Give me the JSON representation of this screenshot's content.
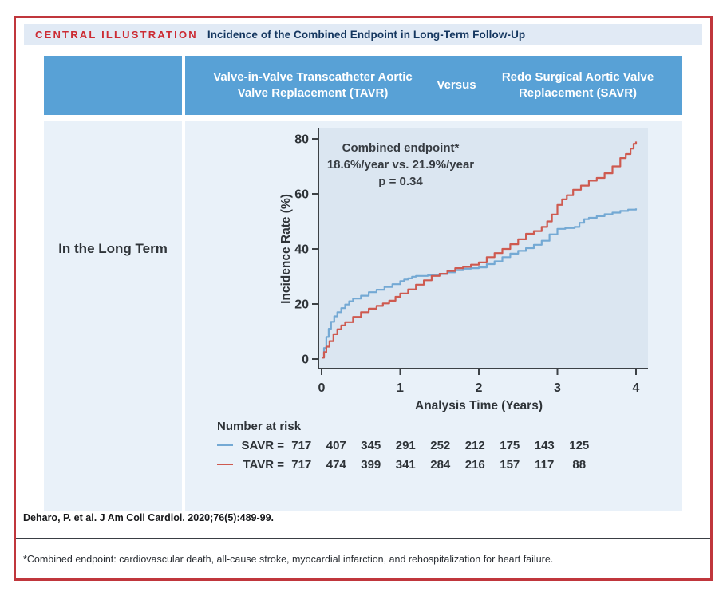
{
  "figure": {
    "kicker": "CENTRAL ILLUSTRATION",
    "title": "Incidence of the Combined Endpoint in Long-Term Follow-Up",
    "citation": "Deharo, P. et al. J Am Coll Cardiol. 2020;76(5):489-99.",
    "footnote": "*Combined endpoint: cardiovascular death, all-cause stroke, myocardial infarction, and rehospitalization for heart failure."
  },
  "comparison_header": {
    "left": "Valve-in-Valve Transcatheter Aortic Valve Replacement (TAVR)",
    "middle": "Versus",
    "right": "Redo Surgical Aortic Valve Replacement (SAVR)"
  },
  "row_label": "In the Long Term",
  "number_at_risk": {
    "title": "Number at risk",
    "rows": [
      {
        "label": "SAVR =",
        "color": "#74a9d4",
        "counts": [
          717,
          407,
          345,
          291,
          252,
          212,
          175,
          143,
          125
        ]
      },
      {
        "label": "TAVR =",
        "color": "#ce5a50",
        "counts": [
          717,
          474,
          399,
          341,
          284,
          216,
          157,
          117,
          88
        ]
      }
    ]
  },
  "chart_data": {
    "type": "line",
    "title": "",
    "xlabel": "Analysis Time (Years)",
    "ylabel": "Incidence Rate (%)",
    "xlim": [
      0,
      4
    ],
    "ylim": [
      0,
      80
    ],
    "xticks": [
      "0",
      "1",
      "2",
      "3",
      "4"
    ],
    "yticks": [
      "0",
      "20",
      "40",
      "60",
      "80"
    ],
    "grid": false,
    "legend_position": "below-as-number-at-risk-table",
    "annotation": [
      "Combined endpoint*",
      "18.6%/year vs. 21.9%/year",
      "p = 0.34"
    ],
    "series": [
      {
        "name": "SAVR",
        "color": "#74a9d4",
        "step": true,
        "x": [
          0,
          0.03,
          0.06,
          0.09,
          0.12,
          0.16,
          0.2,
          0.25,
          0.3,
          0.35,
          0.4,
          0.5,
          0.6,
          0.7,
          0.8,
          0.9,
          1.0,
          1.05,
          1.1,
          1.15,
          1.2,
          1.35,
          1.45,
          1.5,
          1.6,
          1.7,
          1.8,
          1.9,
          2.0,
          2.1,
          2.2,
          2.3,
          2.4,
          2.5,
          2.6,
          2.7,
          2.8,
          2.9,
          3.0,
          3.1,
          3.22,
          3.28,
          3.34,
          3.4,
          3.5,
          3.6,
          3.7,
          3.8,
          3.9,
          4.0
        ],
        "y": [
          0.5,
          4,
          8,
          11,
          13.5,
          15.5,
          17,
          18.5,
          19.8,
          21,
          22,
          23,
          24.3,
          25.2,
          26.2,
          27.2,
          28.3,
          28.9,
          29.3,
          29.9,
          30.2,
          30.4,
          30.7,
          30.9,
          31.5,
          32.3,
          32.8,
          33.0,
          33.3,
          34.5,
          35.5,
          37,
          38.3,
          39.3,
          40.3,
          41.5,
          43,
          45.3,
          47.3,
          47.6,
          48,
          49.5,
          50.8,
          51.3,
          51.9,
          52.6,
          53.2,
          53.8,
          54.3,
          54.7
        ]
      },
      {
        "name": "TAVR",
        "color": "#ce5a50",
        "step": true,
        "x": [
          0,
          0.03,
          0.06,
          0.1,
          0.15,
          0.2,
          0.25,
          0.3,
          0.4,
          0.5,
          0.6,
          0.7,
          0.78,
          0.86,
          0.94,
          1.0,
          1.1,
          1.2,
          1.3,
          1.4,
          1.5,
          1.6,
          1.7,
          1.8,
          1.9,
          2.0,
          2.1,
          2.2,
          2.3,
          2.4,
          2.5,
          2.6,
          2.7,
          2.8,
          2.87,
          2.93,
          3.0,
          3.06,
          3.12,
          3.2,
          3.3,
          3.4,
          3.5,
          3.6,
          3.7,
          3.8,
          3.87,
          3.93,
          3.97,
          4.0
        ],
        "y": [
          0.5,
          2.5,
          4.5,
          6.5,
          9,
          10.8,
          12.2,
          13.4,
          15.3,
          17,
          18.3,
          19.3,
          20.2,
          21.2,
          22.6,
          23.8,
          25.3,
          27,
          28.6,
          30.2,
          31,
          32,
          33,
          33.5,
          34.3,
          35.1,
          37,
          38.5,
          40,
          41.7,
          43.5,
          45.5,
          46.5,
          48,
          50,
          52.5,
          56,
          58,
          59.5,
          61.5,
          63,
          64.8,
          65.8,
          67.5,
          70,
          73,
          74.5,
          76.5,
          78.2,
          79
        ]
      }
    ]
  },
  "colors": {
    "frame_border": "#c0363c",
    "kicker_red": "#cc2b33",
    "title_navy": "#14365f",
    "header_blue": "#58a1d6",
    "panel_light_blue": "#e9f1f9",
    "plot_background": "#dbe6f1",
    "axis_dark": "#3c4146",
    "savr_blue": "#74a9d4",
    "tavr_red": "#ce5a50"
  }
}
